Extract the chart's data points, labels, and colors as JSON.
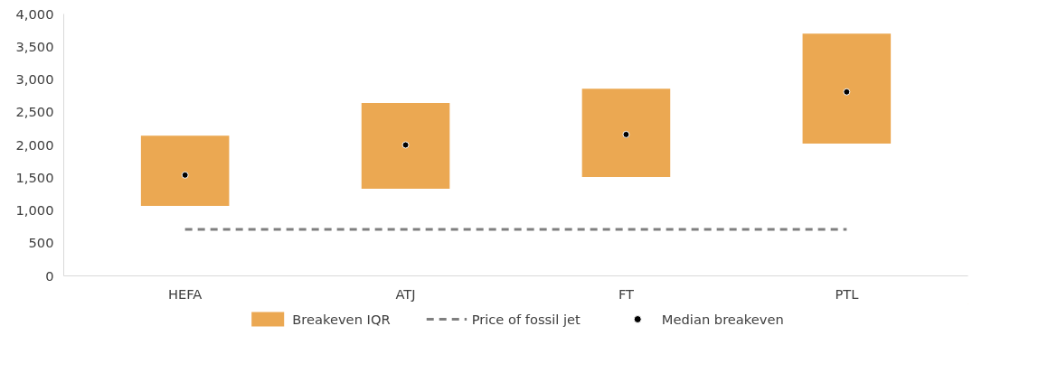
{
  "chart_data": {
    "type": "bar",
    "categories": [
      "HEFA",
      "ATJ",
      "FT",
      "PTL"
    ],
    "series": [
      {
        "name": "Breakeven IQR",
        "color": "#eba852",
        "base": [
          1070,
          1330,
          1510,
          2020
        ],
        "values": [
          1070,
          1310,
          1350,
          1680
        ]
      },
      {
        "name": "Price of fossil jet",
        "type": "line",
        "color": "#7f7f7f",
        "line_style": "dashed",
        "values": [
          710,
          710,
          710,
          710
        ]
      },
      {
        "name": "Median breakeven",
        "type": "scatter",
        "color": "#000000",
        "marker": "circle",
        "values": [
          1540,
          2000,
          2160,
          2810
        ]
      }
    ],
    "ylim": [
      0,
      4000
    ],
    "yticks": [
      {
        "value": 0,
        "label": "0"
      },
      {
        "value": 500,
        "label": "500"
      },
      {
        "value": 1000,
        "label": "1,000"
      },
      {
        "value": 1500,
        "label": "1,500"
      },
      {
        "value": 2000,
        "label": "2,000"
      },
      {
        "value": 2500,
        "label": "2,500"
      },
      {
        "value": 3000,
        "label": "3,000"
      },
      {
        "value": 3500,
        "label": "3,500"
      },
      {
        "value": 4000,
        "label": "4,000"
      }
    ],
    "grid": false,
    "legend": "bottom"
  }
}
